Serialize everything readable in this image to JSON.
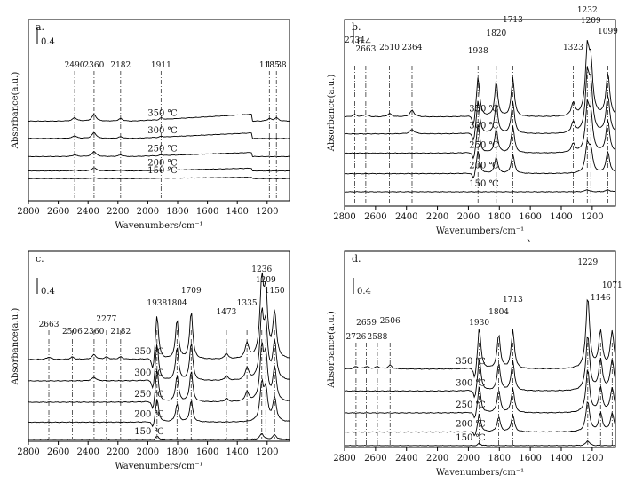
{
  "chart_data": [
    {
      "id": "a",
      "type": "line",
      "panel_label": "a.",
      "xlabel": "Wavenumbers/cm⁻¹",
      "ylabel": "Absorbance(a.u.)",
      "xlim": [
        2800,
        1050
      ],
      "xticks": [
        2800,
        2600,
        2400,
        2200,
        2000,
        1800,
        1600,
        1400,
        1200
      ],
      "scale_bar_label": "0.4",
      "peaks": [
        2490,
        2360,
        2182,
        1911,
        1185,
        1138
      ],
      "series": [
        {
          "name": "150 ℃",
          "baseline": 0.1,
          "peaks": [
            [
              2360,
              0.01
            ],
            [
              1911,
              0.005
            ]
          ]
        },
        {
          "name": "200 ℃",
          "baseline": 0.18,
          "peaks": [
            [
              2490,
              0.01
            ],
            [
              2360,
              0.04
            ],
            [
              2182,
              0.01
            ]
          ]
        },
        {
          "name": "250 ℃",
          "baseline": 0.33,
          "peaks": [
            [
              2490,
              0.02
            ],
            [
              2360,
              0.06
            ],
            [
              2182,
              0.02
            ],
            [
              1911,
              0.01
            ]
          ]
        },
        {
          "name": "300 ℃",
          "baseline": 0.52,
          "peaks": [
            [
              2490,
              0.03
            ],
            [
              2360,
              0.07
            ],
            [
              2182,
              0.02
            ],
            [
              1911,
              0.01
            ]
          ]
        },
        {
          "name": "350 ℃",
          "baseline": 0.7,
          "peaks": [
            [
              2490,
              0.04
            ],
            [
              2360,
              0.08
            ],
            [
              2182,
              0.03
            ],
            [
              1911,
              0.02
            ],
            [
              1185,
              0.03
            ],
            [
              1138,
              0.04
            ]
          ]
        }
      ]
    },
    {
      "id": "b",
      "type": "line",
      "panel_label": "b.",
      "xlabel": "Wavenumbers/cm⁻¹",
      "ylabel": "Absorbance(a.u.)",
      "xlim": [
        2800,
        1050
      ],
      "xticks": [
        2800,
        2600,
        2400,
        2200,
        2000,
        1800,
        1600,
        1400,
        1200
      ],
      "scale_bar_label": "0.4",
      "peaks": [
        2734,
        2663,
        2510,
        2364,
        1938,
        1820,
        1713,
        1323,
        1232,
        1209,
        1099
      ],
      "series": [
        {
          "name": "150 ℃",
          "baseline": 0.0,
          "peaks": [
            [
              1232,
              0.02
            ],
            [
              1099,
              0.02
            ]
          ]
        },
        {
          "name": "200 ℃",
          "baseline": 0.15,
          "peaks": [
            [
              1938,
              0.22
            ],
            [
              1820,
              0.15
            ],
            [
              1713,
              0.18
            ],
            [
              1232,
              0.25
            ],
            [
              1209,
              0.2
            ],
            [
              1099,
              0.2
            ]
          ]
        },
        {
          "name": "250 ℃",
          "baseline": 0.32,
          "peaks": [
            [
              1938,
              0.28
            ],
            [
              1820,
              0.22
            ],
            [
              1713,
              0.25
            ],
            [
              1323,
              0.08
            ],
            [
              1232,
              0.4
            ],
            [
              1209,
              0.32
            ],
            [
              1099,
              0.3
            ]
          ]
        },
        {
          "name": "300 ℃",
          "baseline": 0.48,
          "peaks": [
            [
              2364,
              0.04
            ],
            [
              1938,
              0.32
            ],
            [
              1820,
              0.28
            ],
            [
              1713,
              0.3
            ],
            [
              1323,
              0.1
            ],
            [
              1232,
              0.5
            ],
            [
              1209,
              0.4
            ],
            [
              1099,
              0.35
            ]
          ]
        },
        {
          "name": "350 ℃",
          "baseline": 0.62,
          "peaks": [
            [
              2734,
              0.02
            ],
            [
              2663,
              0.02
            ],
            [
              2510,
              0.03
            ],
            [
              2364,
              0.06
            ],
            [
              1938,
              0.38
            ],
            [
              1820,
              0.32
            ],
            [
              1713,
              0.36
            ],
            [
              1323,
              0.12
            ],
            [
              1232,
              0.58
            ],
            [
              1209,
              0.45
            ],
            [
              1099,
              0.4
            ]
          ]
        }
      ]
    },
    {
      "id": "c",
      "type": "line",
      "panel_label": "c.",
      "xlabel": "Wavenumbers/cm⁻¹",
      "ylabel": "Absorbance(a.u.)",
      "xlim": [
        2800,
        1050
      ],
      "xticks": [
        2800,
        2600,
        2400,
        2200,
        2000,
        1800,
        1600,
        1400,
        1200
      ],
      "scale_bar_label": "0.4",
      "peaks": [
        2663,
        2506,
        2360,
        2277,
        2182,
        1938,
        1804,
        1709,
        1473,
        1335,
        1236,
        1209,
        1150
      ],
      "series": [
        {
          "name": "150 ℃",
          "baseline": 0.0,
          "peaks": [
            [
              1938,
              0.03
            ],
            [
              1236,
              0.05
            ],
            [
              1150,
              0.04
            ]
          ]
        },
        {
          "name": "200 ℃",
          "baseline": 0.13,
          "peaks": [
            [
              1938,
              0.2
            ],
            [
              1804,
              0.15
            ],
            [
              1709,
              0.18
            ],
            [
              1236,
              0.3
            ],
            [
              1209,
              0.25
            ],
            [
              1150,
              0.2
            ]
          ]
        },
        {
          "name": "250 ℃",
          "baseline": 0.28,
          "peaks": [
            [
              1938,
              0.28
            ],
            [
              1804,
              0.22
            ],
            [
              1709,
              0.26
            ],
            [
              1473,
              0.03
            ],
            [
              1335,
              0.08
            ],
            [
              1236,
              0.42
            ],
            [
              1209,
              0.35
            ],
            [
              1150,
              0.28
            ]
          ]
        },
        {
          "name": "300 ℃",
          "baseline": 0.44,
          "peaks": [
            [
              2360,
              0.03
            ],
            [
              1938,
              0.32
            ],
            [
              1804,
              0.28
            ],
            [
              1709,
              0.32
            ],
            [
              1473,
              0.04
            ],
            [
              1335,
              0.1
            ],
            [
              1236,
              0.52
            ],
            [
              1209,
              0.42
            ],
            [
              1150,
              0.32
            ]
          ]
        },
        {
          "name": "350 ℃",
          "baseline": 0.6,
          "peaks": [
            [
              2663,
              0.02
            ],
            [
              2506,
              0.02
            ],
            [
              2360,
              0.04
            ],
            [
              2277,
              0.02
            ],
            [
              2182,
              0.02
            ],
            [
              1938,
              0.38
            ],
            [
              1804,
              0.33
            ],
            [
              1709,
              0.4
            ],
            [
              1473,
              0.05
            ],
            [
              1335,
              0.13
            ],
            [
              1236,
              0.62
            ],
            [
              1209,
              0.5
            ],
            [
              1150,
              0.38
            ]
          ]
        }
      ]
    },
    {
      "id": "d",
      "type": "line",
      "panel_label": "d.",
      "xlabel": "Wavenumbers/cm⁻¹",
      "ylabel": "Absorbance(a.u.)",
      "xlim": [
        2800,
        1050
      ],
      "xticks": [
        2800,
        2600,
        2400,
        2200,
        2000,
        1800,
        1600,
        1400,
        1200
      ],
      "scale_bar_label": "0.4",
      "peaks": [
        2726,
        2659,
        2588,
        2506,
        1930,
        1804,
        1713,
        1229,
        1146,
        1071
      ],
      "series": [
        {
          "name": "150 ℃",
          "baseline": 0.0,
          "peaks": [
            [
              1930,
              0.02
            ],
            [
              1229,
              0.04
            ]
          ]
        },
        {
          "name": "200 ℃",
          "baseline": 0.1,
          "peaks": [
            [
              1930,
              0.15
            ],
            [
              1804,
              0.12
            ],
            [
              1713,
              0.14
            ],
            [
              1229,
              0.25
            ],
            [
              1146,
              0.15
            ],
            [
              1071,
              0.15
            ]
          ]
        },
        {
          "name": "250 ℃",
          "baseline": 0.24,
          "peaks": [
            [
              1930,
              0.22
            ],
            [
              1804,
              0.18
            ],
            [
              1713,
              0.2
            ],
            [
              1229,
              0.35
            ],
            [
              1146,
              0.2
            ],
            [
              1071,
              0.2
            ]
          ]
        },
        {
          "name": "300 ℃",
          "baseline": 0.4,
          "peaks": [
            [
              1930,
              0.28
            ],
            [
              1804,
              0.22
            ],
            [
              1713,
              0.25
            ],
            [
              1229,
              0.45
            ],
            [
              1146,
              0.25
            ],
            [
              1071,
              0.25
            ]
          ]
        },
        {
          "name": "350 ℃",
          "baseline": 0.56,
          "peaks": [
            [
              2726,
              0.02
            ],
            [
              2659,
              0.02
            ],
            [
              2588,
              0.02
            ],
            [
              2506,
              0.03
            ],
            [
              1930,
              0.35
            ],
            [
              1804,
              0.28
            ],
            [
              1713,
              0.32
            ],
            [
              1229,
              0.58
            ],
            [
              1146,
              0.3
            ],
            [
              1071,
              0.3
            ]
          ]
        }
      ]
    }
  ],
  "caption_glyph": "、"
}
